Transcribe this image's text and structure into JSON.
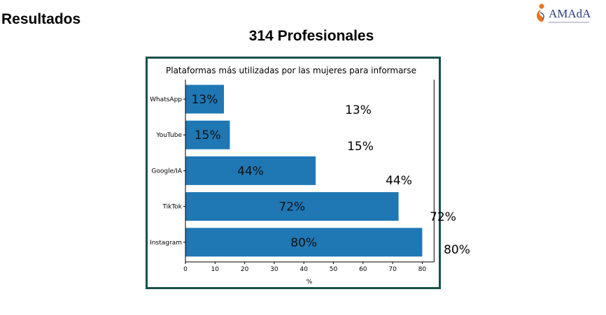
{
  "header": {
    "title": "Resultados",
    "subtitle": "314 Profesionales"
  },
  "logo": {
    "text": "AMAdA"
  },
  "colors": {
    "bar": "#1f77b4",
    "frame": "#17504a",
    "logo_accent": "#e8761e"
  },
  "chart_data": {
    "type": "bar",
    "orientation": "horizontal",
    "title": "Plataformas más utilizadas por las mujeres para informarse",
    "categories": [
      "WhatsApp",
      "YouTube",
      "Google/IA",
      "TikTok",
      "Instagram"
    ],
    "values": [
      13,
      15,
      44,
      72,
      80
    ],
    "data_labels": [
      "13%",
      "15%",
      "44%",
      "72%",
      "80%"
    ],
    "xlabel": "%",
    "ylabel": "",
    "xlim": [
      0,
      84
    ],
    "xticks": [
      "0",
      "10",
      "20",
      "30",
      "40",
      "50",
      "60",
      "70",
      "80"
    ],
    "grid": false,
    "legend": "none"
  }
}
